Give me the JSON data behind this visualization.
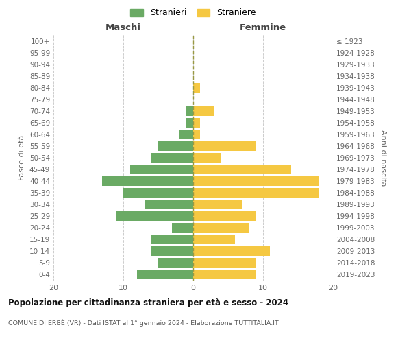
{
  "age_groups": [
    "0-4",
    "5-9",
    "10-14",
    "15-19",
    "20-24",
    "25-29",
    "30-34",
    "35-39",
    "40-44",
    "45-49",
    "50-54",
    "55-59",
    "60-64",
    "65-69",
    "70-74",
    "75-79",
    "80-84",
    "85-89",
    "90-94",
    "95-99",
    "100+"
  ],
  "birth_years": [
    "2019-2023",
    "2014-2018",
    "2009-2013",
    "2004-2008",
    "1999-2003",
    "1994-1998",
    "1989-1993",
    "1984-1988",
    "1979-1983",
    "1974-1978",
    "1969-1973",
    "1964-1968",
    "1959-1963",
    "1954-1958",
    "1949-1953",
    "1944-1948",
    "1939-1943",
    "1934-1938",
    "1929-1933",
    "1924-1928",
    "≤ 1923"
  ],
  "males": [
    8,
    5,
    6,
    6,
    3,
    11,
    7,
    10,
    13,
    9,
    6,
    5,
    2,
    1,
    1,
    0,
    0,
    0,
    0,
    0,
    0
  ],
  "females": [
    9,
    9,
    11,
    6,
    8,
    9,
    7,
    18,
    18,
    14,
    4,
    9,
    1,
    1,
    3,
    0,
    1,
    0,
    0,
    0,
    0
  ],
  "male_color": "#6aaa64",
  "female_color": "#f5c842",
  "title": "Popolazione per cittadinanza straniera per età e sesso - 2024",
  "subtitle": "COMUNE DI ERBÈ (VR) - Dati ISTAT al 1° gennaio 2024 - Elaborazione TUTTITALIA.IT",
  "xlabel_left": "Maschi",
  "xlabel_right": "Femmine",
  "ylabel_left": "Fasce di età",
  "ylabel_right": "Anni di nascita",
  "legend_male": "Stranieri",
  "legend_female": "Straniere",
  "xlim": 20,
  "bg_color": "#ffffff",
  "grid_color": "#cccccc",
  "bar_height": 0.8
}
